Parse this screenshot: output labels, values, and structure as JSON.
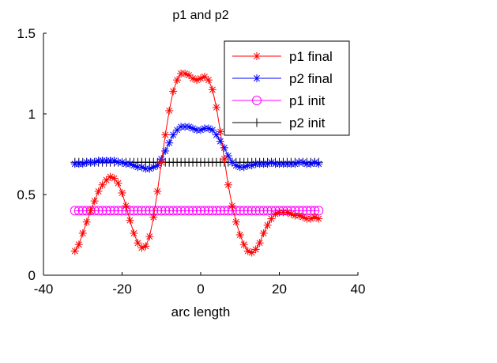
{
  "chart_data": {
    "type": "line",
    "title": "p1 and p2",
    "xlabel": "arc length",
    "ylabel": "",
    "xlim": [
      -40,
      40
    ],
    "ylim": [
      0,
      1.5
    ],
    "xticks": [
      -40,
      -20,
      0,
      20,
      40
    ],
    "yticks": [
      0,
      0.5,
      1,
      1.5
    ],
    "xtick_labels": [
      "-40",
      "-20",
      "0",
      "20",
      "40"
    ],
    "ytick_labels": [
      "0",
      "0.5",
      "1",
      "1.5"
    ],
    "grid": false,
    "legend_position": "top-right",
    "x": [
      -32,
      -31,
      -30,
      -29,
      -28,
      -27,
      -26,
      -25,
      -24,
      -23,
      -22,
      -21,
      -20,
      -19,
      -18,
      -17,
      -16,
      -15,
      -14,
      -13,
      -12,
      -11,
      -10,
      -9,
      -8,
      -7,
      -6,
      -5,
      -4,
      -3,
      -2,
      -1,
      0,
      1,
      2,
      3,
      4,
      5,
      6,
      7,
      8,
      9,
      10,
      11,
      12,
      13,
      14,
      15,
      16,
      17,
      18,
      19,
      20,
      21,
      22,
      23,
      24,
      25,
      26,
      27,
      28,
      29,
      30
    ],
    "series": [
      {
        "name": "p1 final",
        "color": "#ff0000",
        "marker": "asterisk",
        "values": [
          0.15,
          0.19,
          0.26,
          0.33,
          0.4,
          0.46,
          0.52,
          0.56,
          0.59,
          0.61,
          0.6,
          0.57,
          0.51,
          0.43,
          0.34,
          0.26,
          0.2,
          0.17,
          0.18,
          0.24,
          0.36,
          0.52,
          0.7,
          0.87,
          1.02,
          1.14,
          1.21,
          1.25,
          1.25,
          1.24,
          1.22,
          1.21,
          1.22,
          1.23,
          1.21,
          1.15,
          1.04,
          0.89,
          0.72,
          0.56,
          0.43,
          0.33,
          0.25,
          0.19,
          0.15,
          0.14,
          0.16,
          0.2,
          0.26,
          0.31,
          0.35,
          0.38,
          0.39,
          0.39,
          0.39,
          0.38,
          0.37,
          0.37,
          0.36,
          0.35,
          0.35,
          0.36,
          0.35
        ]
      },
      {
        "name": "p2 final",
        "color": "#0000ff",
        "marker": "asterisk",
        "values": [
          0.69,
          0.69,
          0.69,
          0.7,
          0.7,
          0.7,
          0.71,
          0.71,
          0.71,
          0.71,
          0.71,
          0.7,
          0.7,
          0.69,
          0.69,
          0.68,
          0.67,
          0.67,
          0.66,
          0.66,
          0.67,
          0.68,
          0.72,
          0.77,
          0.82,
          0.87,
          0.9,
          0.92,
          0.92,
          0.92,
          0.91,
          0.9,
          0.9,
          0.91,
          0.91,
          0.9,
          0.87,
          0.83,
          0.79,
          0.74,
          0.7,
          0.68,
          0.67,
          0.67,
          0.68,
          0.68,
          0.69,
          0.69,
          0.69,
          0.69,
          0.7,
          0.69,
          0.69,
          0.69,
          0.69,
          0.69,
          0.69,
          0.7,
          0.7,
          0.69,
          0.69,
          0.7,
          0.69
        ]
      },
      {
        "name": "p1 init",
        "color": "#ff00ff",
        "marker": "circle",
        "values": [
          0.4,
          0.4,
          0.4,
          0.4,
          0.4,
          0.4,
          0.4,
          0.4,
          0.4,
          0.4,
          0.4,
          0.4,
          0.4,
          0.4,
          0.4,
          0.4,
          0.4,
          0.4,
          0.4,
          0.4,
          0.4,
          0.4,
          0.4,
          0.4,
          0.4,
          0.4,
          0.4,
          0.4,
          0.4,
          0.4,
          0.4,
          0.4,
          0.4,
          0.4,
          0.4,
          0.4,
          0.4,
          0.4,
          0.4,
          0.4,
          0.4,
          0.4,
          0.4,
          0.4,
          0.4,
          0.4,
          0.4,
          0.4,
          0.4,
          0.4,
          0.4,
          0.4,
          0.4,
          0.4,
          0.4,
          0.4,
          0.4,
          0.4,
          0.4,
          0.4,
          0.4,
          0.4,
          0.4
        ]
      },
      {
        "name": "p2 init",
        "color": "#000000",
        "marker": "plus",
        "values": [
          0.7,
          0.7,
          0.7,
          0.7,
          0.7,
          0.7,
          0.7,
          0.7,
          0.7,
          0.7,
          0.7,
          0.7,
          0.7,
          0.7,
          0.7,
          0.7,
          0.7,
          0.7,
          0.7,
          0.7,
          0.7,
          0.7,
          0.7,
          0.7,
          0.7,
          0.7,
          0.7,
          0.7,
          0.7,
          0.7,
          0.7,
          0.7,
          0.7,
          0.7,
          0.7,
          0.7,
          0.7,
          0.7,
          0.7,
          0.7,
          0.7,
          0.7,
          0.7,
          0.7,
          0.7,
          0.7,
          0.7,
          0.7,
          0.7,
          0.7,
          0.7,
          0.7,
          0.7,
          0.7,
          0.7,
          0.7,
          0.7,
          0.7,
          0.7,
          0.7,
          0.7,
          0.7,
          0.7
        ]
      }
    ]
  }
}
